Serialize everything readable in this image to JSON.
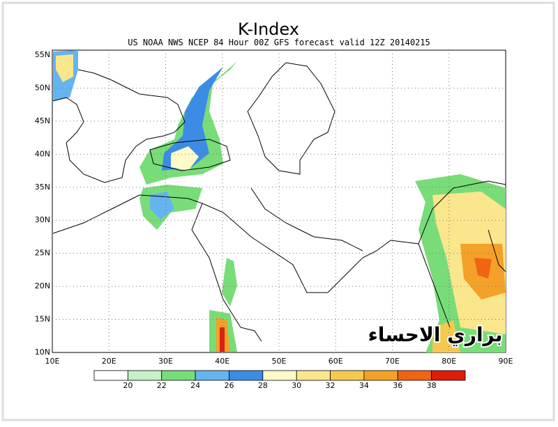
{
  "header": {
    "title": "K-Index",
    "subtitle": "US NOAA NWS NCEP 84 Hour 00Z GFS forecast valid 12Z 20140215"
  },
  "map": {
    "lat_labels": [
      "55N",
      "50N",
      "45N",
      "40N",
      "35N",
      "30N",
      "25N",
      "20N",
      "15N",
      "10N"
    ],
    "lon_labels": [
      "10E",
      "20E",
      "30E",
      "40E",
      "50E",
      "60E",
      "70E",
      "80E",
      "90E"
    ]
  },
  "colorbar": {
    "labels": [
      20,
      22,
      24,
      26,
      28,
      30,
      32,
      34,
      36,
      38
    ],
    "colors": [
      "#ffffff",
      "#c8f0c8",
      "#78dc78",
      "#64b4f0",
      "#3c8ce6",
      "#fffac8",
      "#fae68c",
      "#f5c850",
      "#f5a028",
      "#f06414",
      "#dc1e0a"
    ]
  },
  "watermark": "براري الاحساء"
}
